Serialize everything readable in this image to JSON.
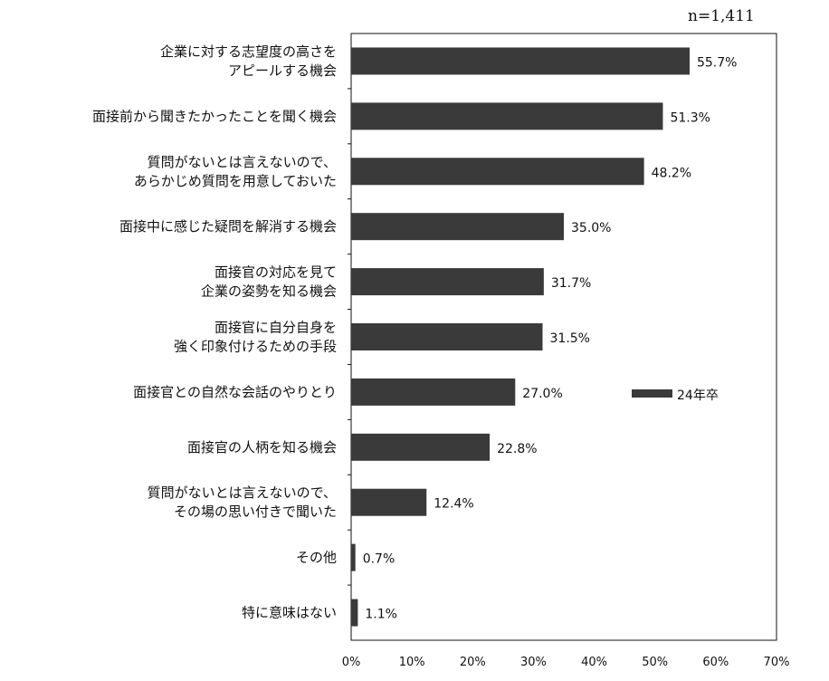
{
  "sample_note": "n=1,411",
  "chart_data": {
    "type": "bar",
    "orientation": "horizontal",
    "title": "",
    "xlabel": "",
    "ylabel": "",
    "xlim": [
      0,
      70
    ],
    "x_ticks": [
      "0%",
      "10%",
      "20%",
      "30%",
      "40%",
      "50%",
      "60%",
      "70%"
    ],
    "bar_color": "#3a3a3a",
    "grid": false,
    "legend_position": "right",
    "categories": [
      [
        "企業に対する志望度の高さを",
        "アピールする機会"
      ],
      [
        "面接前から聞きたかったことを聞く機会"
      ],
      [
        "質問がないとは言えないので、",
        "あらかじめ質問を用意しておいた"
      ],
      [
        "面接中に感じた疑問を解消する機会"
      ],
      [
        "面接官の対応を見て",
        "企業の姿勢を知る機会"
      ],
      [
        "面接官に自分自身を",
        "強く印象付けるための手段"
      ],
      [
        "面接官との自然な会話のやりとり"
      ],
      [
        "面接官の人柄を知る機会"
      ],
      [
        "質問がないとは言えないので、",
        "その場の思い付きで聞いた"
      ],
      [
        "その他"
      ],
      [
        "特に意味はない"
      ]
    ],
    "series": [
      {
        "name": "24年卒",
        "values": [
          55.7,
          51.3,
          48.2,
          35.0,
          31.7,
          31.5,
          27.0,
          22.8,
          12.4,
          0.7,
          1.1
        ],
        "labels": [
          "55.7%",
          "51.3%",
          "48.2%",
          "35.0%",
          "31.7%",
          "31.5%",
          "27.0%",
          "22.8%",
          "12.4%",
          "0.7%",
          "1.1%"
        ]
      }
    ]
  }
}
